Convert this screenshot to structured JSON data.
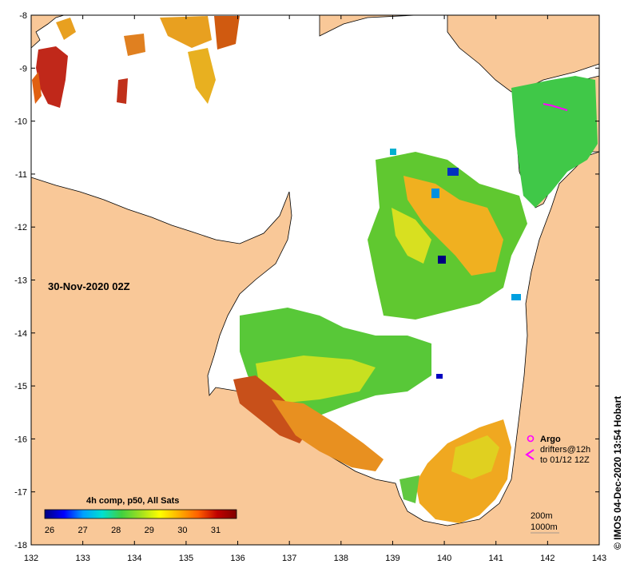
{
  "map": {
    "land_color": "#f9c898",
    "sea_color": "#ffffff",
    "lon_ticks": [
      "132",
      "133",
      "134",
      "135",
      "136",
      "137",
      "138",
      "139",
      "140",
      "141",
      "142",
      "143"
    ],
    "lat_ticks": [
      "-8",
      "-9",
      "-10",
      "-11",
      "-12",
      "-13",
      "-14",
      "-15",
      "-16",
      "-17",
      "-18"
    ]
  },
  "overlay": {
    "date_label": "30-Nov-2020 02Z"
  },
  "colorbar": {
    "title": "4h comp, p50, All Sats",
    "tick_labels": [
      "26",
      "27",
      "28",
      "29",
      "30",
      "31"
    ],
    "colors": [
      "#00007f",
      "#0000ff",
      "#00a0ff",
      "#00e0d0",
      "#40d040",
      "#a0e020",
      "#ffff00",
      "#ffb000",
      "#ff6000",
      "#c00000",
      "#800000"
    ]
  },
  "legend": {
    "argo_label": "Argo",
    "drifters_line1": "drifters@12h",
    "drifters_line2": "to 01/12 12Z",
    "argo_color": "#ff00ff",
    "depth_200": "200m",
    "depth_1000": "1000m"
  },
  "credit": {
    "text": "© IMOS 04-Dec-2020 13:54 Hobart"
  }
}
